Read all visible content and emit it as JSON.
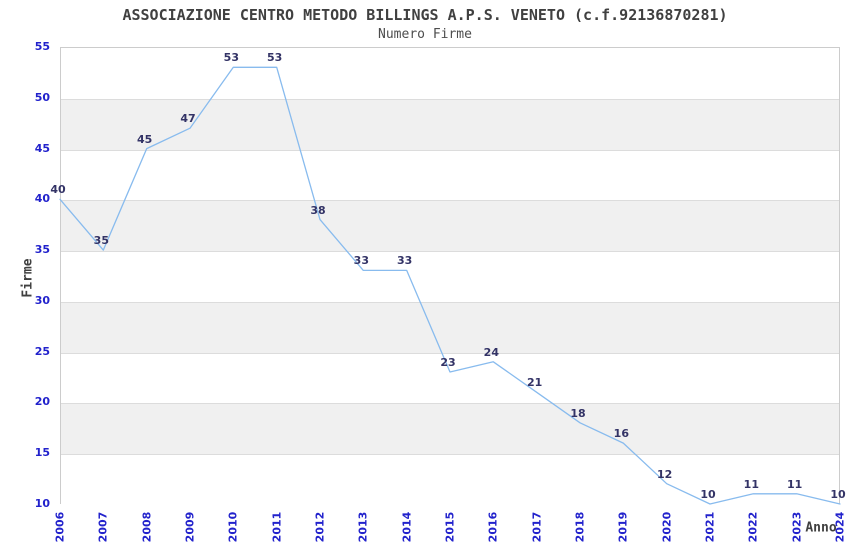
{
  "title": "ASSOCIAZIONE CENTRO METODO BILLINGS A.P.S. VENETO (c.f.92136870281)",
  "subtitle": "Numero Firme",
  "chart_data": {
    "type": "line",
    "title": "ASSOCIAZIONE CENTRO METODO BILLINGS A.P.S. VENETO (c.f.92136870281)",
    "subtitle": "Numero Firme",
    "xlabel": "Anno",
    "ylabel": "Firme",
    "x": [
      2006,
      2007,
      2008,
      2009,
      2010,
      2011,
      2012,
      2013,
      2014,
      2015,
      2016,
      2017,
      2018,
      2019,
      2020,
      2021,
      2022,
      2023,
      2024
    ],
    "values": [
      40,
      35,
      45,
      47,
      53,
      53,
      38,
      33,
      33,
      23,
      24,
      21,
      18,
      16,
      12,
      10,
      11,
      11,
      10
    ],
    "ylim": [
      10,
      55
    ],
    "ytick_step": 5,
    "grid": "horizontal-only",
    "legend": "none",
    "colors": {
      "line": "#88bbee",
      "tick_labels": "#2222cc",
      "data_labels": "#333366",
      "band_gray": "#f0f0f0",
      "band_white": "#ffffff",
      "gridline": "#dcdcdc",
      "frame": "#cccccc",
      "title_text": "#404040",
      "subtitle_text": "#4d4d4d"
    }
  }
}
